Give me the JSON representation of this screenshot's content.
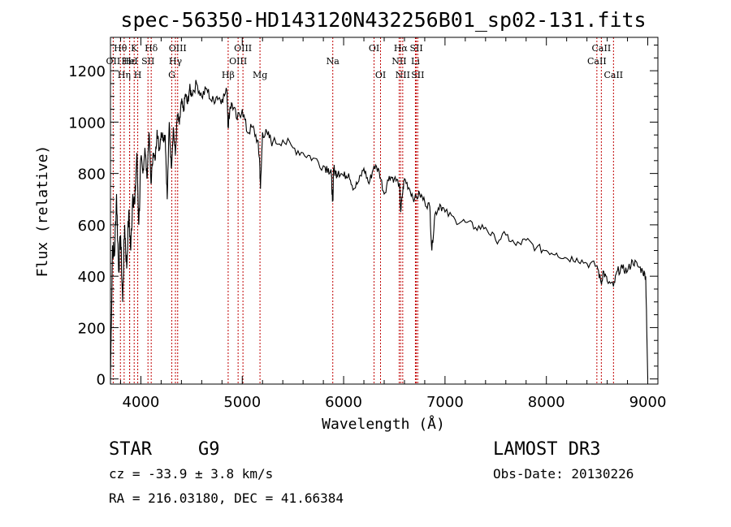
{
  "chart_data": {
    "type": "line",
    "title": "spec-56350-HD143120N432256B01_sp02-131.fits",
    "xlabel": "Wavelength (Å)",
    "ylabel": "Flux (relative)",
    "xlim": [
      3700,
      9100
    ],
    "ylim": [
      -20,
      1330
    ],
    "x_ticks": [
      4000,
      5000,
      6000,
      7000,
      8000,
      9000
    ],
    "x_tick_labels": [
      "4000",
      "5000",
      "6000",
      "7000",
      "8000",
      "9000"
    ],
    "y_ticks": [
      0,
      200,
      400,
      600,
      800,
      1000,
      1200
    ],
    "y_tick_labels": [
      "0",
      "200",
      "400",
      "600",
      "800",
      "1000",
      "1200"
    ],
    "series": [
      {
        "name": "flux",
        "x": [
          3700,
          3720,
          3740,
          3760,
          3780,
          3800,
          3820,
          3840,
          3860,
          3880,
          3900,
          3920,
          3940,
          3960,
          3980,
          4000,
          4020,
          4040,
          4060,
          4080,
          4100,
          4120,
          4140,
          4160,
          4180,
          4200,
          4220,
          4240,
          4260,
          4280,
          4300,
          4320,
          4340,
          4360,
          4380,
          4400,
          4420,
          4440,
          4460,
          4480,
          4500,
          4550,
          4600,
          4650,
          4700,
          4750,
          4800,
          4850,
          4860,
          4880,
          4900,
          4950,
          5000,
          5050,
          5100,
          5150,
          5170,
          5180,
          5200,
          5250,
          5300,
          5400,
          5500,
          5600,
          5700,
          5800,
          5850,
          5880,
          5890,
          5896,
          5900,
          5920,
          5950,
          6000,
          6050,
          6100,
          6150,
          6200,
          6250,
          6300,
          6350,
          6400,
          6450,
          6500,
          6550,
          6563,
          6580,
          6600,
          6650,
          6700,
          6750,
          6800,
          6850,
          6870,
          6900,
          6950,
          7000,
          7100,
          7200,
          7300,
          7400,
          7500,
          7600,
          7700,
          7800,
          7900,
          8000,
          8100,
          8200,
          8300,
          8400,
          8500,
          8542,
          8560,
          8600,
          8662,
          8700,
          8750,
          8800,
          8850,
          8900,
          8950,
          8980,
          9000
        ],
        "y": [
          0,
          520,
          480,
          720,
          420,
          560,
          300,
          600,
          430,
          650,
          500,
          720,
          680,
          880,
          600,
          860,
          800,
          900,
          780,
          960,
          760,
          880,
          850,
          970,
          890,
          960,
          940,
          950,
          700,
          1000,
          820,
          980,
          870,
          1030,
          990,
          1080,
          1040,
          1110,
          1070,
          1130,
          1110,
          1150,
          1100,
          1130,
          1080,
          1100,
          1090,
          1120,
          980,
          1060,
          1070,
          1010,
          1050,
          960,
          980,
          930,
          860,
          740,
          960,
          950,
          920,
          930,
          900,
          880,
          860,
          830,
          820,
          790,
          690,
          720,
          820,
          800,
          810,
          790,
          800,
          740,
          770,
          820,
          760,
          830,
          810,
          720,
          790,
          780,
          760,
          650,
          720,
          780,
          740,
          700,
          720,
          690,
          670,
          500,
          640,
          680,
          650,
          620,
          610,
          590,
          590,
          540,
          560,
          520,
          540,
          510,
          500,
          490,
          470,
          470,
          450,
          440,
          370,
          420,
          380,
          360,
          420,
          430,
          420,
          460,
          440,
          420,
          400,
          0
        ]
      }
    ],
    "grid": false
  },
  "spectral_lines": [
    {
      "label": "Hθ",
      "wl": 3798,
      "row": 1
    },
    {
      "label": "OII",
      "wl": 3727,
      "row": 2
    },
    {
      "label": "Hε",
      "wl": 3889,
      "row": 2
    },
    {
      "label": "HeI",
      "wl": 3889,
      "row": 2
    },
    {
      "label": "K",
      "wl": 3934,
      "row": 1
    },
    {
      "label": "H",
      "wl": 3969,
      "row": 3
    },
    {
      "label": "Hη",
      "wl": 3835,
      "row": 3
    },
    {
      "label": "Hδ",
      "wl": 4102,
      "row": 1
    },
    {
      "label": "SII",
      "wl": 4070,
      "row": 2
    },
    {
      "label": "OIII",
      "wl": 4363,
      "row": 1
    },
    {
      "label": "Hγ",
      "wl": 4341,
      "row": 2
    },
    {
      "label": "G",
      "wl": 4305,
      "row": 3
    },
    {
      "label": "Hβ",
      "wl": 4861,
      "row": 3
    },
    {
      "label": "OIII",
      "wl": 5007,
      "row": 1
    },
    {
      "label": "OIII",
      "wl": 4959,
      "row": 2
    },
    {
      "label": "Mg",
      "wl": 5175,
      "row": 3
    },
    {
      "label": "Na",
      "wl": 5893,
      "row": 2
    },
    {
      "label": "OI",
      "wl": 6300,
      "row": 1
    },
    {
      "label": "OI",
      "wl": 6364,
      "row": 3
    },
    {
      "label": "Hα",
      "wl": 6563,
      "row": 1
    },
    {
      "label": "NII",
      "wl": 6548,
      "row": 2
    },
    {
      "label": "NII",
      "wl": 6583,
      "row": 3
    },
    {
      "label": "SII",
      "wl": 6717,
      "row": 1
    },
    {
      "label": "Li",
      "wl": 6708,
      "row": 2
    },
    {
      "label": "SII",
      "wl": 6731,
      "row": 3
    },
    {
      "label": "CaII",
      "wl": 8542,
      "row": 1
    },
    {
      "label": "CaII",
      "wl": 8498,
      "row": 2
    },
    {
      "label": "CaII",
      "wl": 8662,
      "row": 3
    }
  ],
  "footer": {
    "class_label": "STAR",
    "subclass": "G9",
    "survey": "LAMOST DR3",
    "cz": "cz = -33.9 ± 3.8 km/s",
    "obs_date": "Obs-Date: 20130226",
    "coords": "RA = 216.03180, DEC =  41.66384"
  },
  "colors": {
    "line": "#000000",
    "marker": "#c00000"
  }
}
